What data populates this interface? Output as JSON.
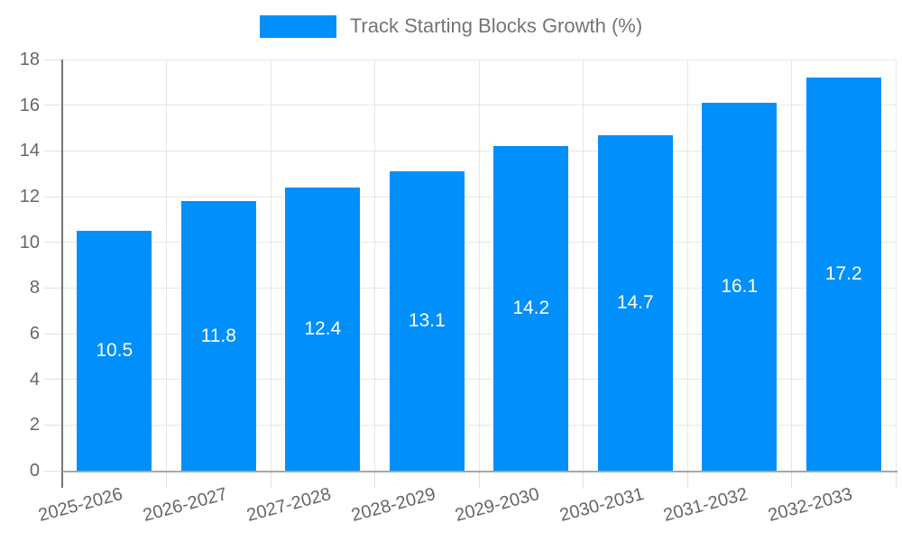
{
  "legend": {
    "series_label": "Track Starting Blocks Growth (%)"
  },
  "chart_data": {
    "type": "bar",
    "title": "Track Starting Blocks Growth (%)",
    "categories": [
      "2025-2026",
      "2026-2027",
      "2027-2028",
      "2028-2029",
      "2029-2030",
      "2030-2031",
      "2031-2032",
      "2032-2033"
    ],
    "values": [
      10.5,
      11.8,
      12.4,
      13.1,
      14.2,
      14.7,
      16.1,
      17.2
    ],
    "value_labels": [
      "10.5",
      "11.8",
      "12.4",
      "13.1",
      "14.2",
      "14.7",
      "16.1",
      "17.2"
    ],
    "xlabel": "",
    "ylabel": "",
    "ylim": [
      0,
      18
    ],
    "yticks": [
      0,
      2,
      4,
      6,
      8,
      10,
      12,
      14,
      16,
      18
    ],
    "grid": true,
    "legend_position": "top",
    "colors": {
      "bar": "#008FFB",
      "value_label": "#ffffff",
      "axis_label": "#666666",
      "legend_text": "#757575",
      "gridline": "#e6e6e6",
      "tick": "#e0e0e0",
      "y_axis_line": "#757575",
      "x_axis_line": "#a6a6a6"
    }
  }
}
